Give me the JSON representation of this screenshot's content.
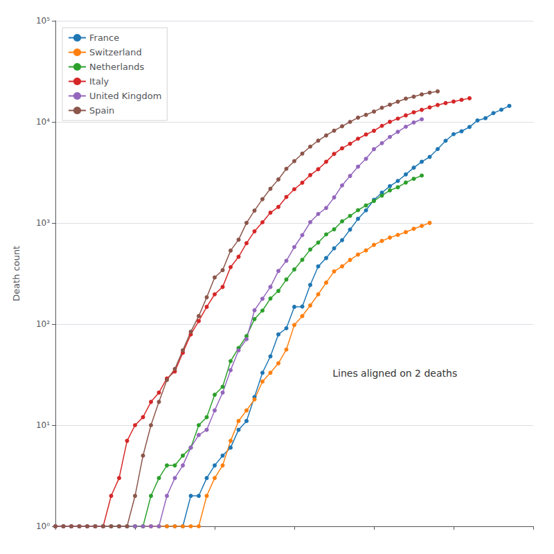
{
  "chart_data": {
    "type": "line",
    "ylabel": "Death count",
    "annotation": "Lines aligned on 2 deaths",
    "log": "y",
    "xlim": [
      0,
      60
    ],
    "ylim": [
      1,
      100000
    ],
    "yticks": [
      {
        "value": 1,
        "label": "10⁰"
      },
      {
        "value": 10,
        "label": "10¹"
      },
      {
        "value": 100,
        "label": "10²"
      },
      {
        "value": 1000,
        "label": "10³"
      },
      {
        "value": 10000,
        "label": "10⁴"
      },
      {
        "value": 100000,
        "label": "10⁵"
      }
    ],
    "grid": "y",
    "legend": "upper left",
    "tick_labels": "y",
    "marker": "circle",
    "series": [
      {
        "name": "France",
        "color": "#1f77b4",
        "x": [
          0,
          1,
          2,
          3,
          4,
          5,
          6,
          7,
          8,
          9,
          10,
          11,
          12,
          13,
          14,
          15,
          16,
          17,
          18,
          19,
          20,
          21,
          22,
          23,
          24,
          25,
          26,
          27,
          28,
          29,
          30,
          31,
          32,
          33,
          34,
          35,
          36,
          37,
          38,
          39,
          40,
          41,
          42,
          43,
          44,
          45,
          46,
          47,
          48,
          49,
          50,
          51,
          52,
          53,
          54,
          55,
          56,
          57
        ],
        "values": [
          1,
          1,
          1,
          1,
          1,
          1,
          1,
          1,
          1,
          1,
          1,
          1,
          1,
          1,
          1,
          1,
          1,
          2,
          2,
          3,
          4,
          5,
          6,
          9,
          11,
          19,
          33,
          48,
          79,
          91,
          148,
          149,
          244,
          372,
          450,
          562,
          676,
          860,
          1100,
          1333,
          1696,
          1995,
          2314,
          2606,
          3024,
          3523,
          4032,
          4503,
          5387,
          6507,
          7560,
          8078,
          8911,
          10328,
          10869,
          12210,
          13197,
          14393
        ]
      },
      {
        "name": "Switzerland",
        "color": "#ff7f0e",
        "x": [
          0,
          1,
          2,
          3,
          4,
          5,
          6,
          7,
          8,
          9,
          10,
          11,
          12,
          13,
          14,
          15,
          16,
          17,
          18,
          19,
          20,
          21,
          22,
          23,
          24,
          25,
          26,
          27,
          28,
          29,
          30,
          31,
          32,
          33,
          34,
          35,
          36,
          37,
          38,
          39,
          40,
          41,
          42,
          43,
          44,
          45,
          46,
          47
        ],
        "values": [
          1,
          1,
          1,
          1,
          1,
          1,
          1,
          1,
          1,
          1,
          1,
          1,
          1,
          1,
          1,
          1,
          1,
          1,
          1,
          2,
          3,
          4,
          7,
          11,
          14,
          18,
          27,
          33,
          41,
          56,
          98,
          120,
          153,
          197,
          257,
          332,
          373,
          431,
          487,
          536,
          607,
          665,
          717,
          762,
          812,
          876,
          936,
          1002
        ]
      },
      {
        "name": "Netherlands",
        "color": "#2ca02c",
        "x": [
          0,
          1,
          2,
          3,
          4,
          5,
          6,
          7,
          8,
          9,
          10,
          11,
          12,
          13,
          14,
          15,
          16,
          17,
          18,
          19,
          20,
          21,
          22,
          23,
          24,
          25,
          26,
          27,
          28,
          29,
          30,
          31,
          32,
          33,
          34,
          35,
          36,
          37,
          38,
          39,
          40,
          41,
          42,
          43,
          44,
          45,
          46
        ],
        "values": [
          1,
          1,
          1,
          1,
          1,
          1,
          1,
          1,
          1,
          1,
          1,
          1,
          2,
          3,
          4,
          4,
          5,
          6,
          10,
          12,
          20,
          24,
          43,
          58,
          76,
          112,
          136,
          179,
          213,
          276,
          347,
          432,
          546,
          640,
          771,
          865,
          1039,
          1175,
          1339,
          1490,
          1651,
          1867,
          2101,
          2255,
          2511,
          2737,
          2945
        ]
      },
      {
        "name": "Italy",
        "color": "#d62728",
        "x": [
          0,
          1,
          2,
          3,
          4,
          5,
          6,
          7,
          8,
          9,
          10,
          11,
          12,
          13,
          14,
          15,
          16,
          17,
          18,
          19,
          20,
          21,
          22,
          23,
          24,
          25,
          26,
          27,
          28,
          29,
          30,
          31,
          32,
          33,
          34,
          35,
          36,
          37,
          38,
          39,
          40,
          41,
          42,
          43,
          44,
          45,
          46,
          47,
          48,
          49,
          50,
          51,
          52
        ],
        "values": [
          1,
          1,
          1,
          1,
          1,
          1,
          1,
          2,
          3,
          7,
          10,
          12,
          17,
          21,
          29,
          34,
          52,
          79,
          107,
          148,
          197,
          233,
          366,
          463,
          631,
          827,
          1016,
          1266,
          1441,
          1809,
          2158,
          2503,
          2978,
          3405,
          4032,
          4825,
          5476,
          6077,
          6820,
          7503,
          8165,
          9134,
          10023,
          10779,
          11591,
          12428,
          13155,
          13915,
          14681,
          15362,
          15887,
          16523,
          17127
        ]
      },
      {
        "name": "United Kingdom",
        "color": "#9467bd",
        "x": [
          0,
          1,
          2,
          3,
          4,
          5,
          6,
          7,
          8,
          9,
          10,
          11,
          12,
          13,
          14,
          15,
          16,
          17,
          18,
          19,
          20,
          21,
          22,
          23,
          24,
          25,
          26,
          27,
          28,
          29,
          30,
          31,
          32,
          33,
          34,
          35,
          36,
          37,
          38,
          39,
          40,
          41,
          42,
          43,
          44,
          45,
          46
        ],
        "values": [
          1,
          1,
          1,
          1,
          1,
          1,
          1,
          1,
          1,
          1,
          1,
          1,
          1,
          1,
          2,
          3,
          4,
          6,
          8,
          9,
          14,
          21,
          35,
          55,
          71,
          137,
          178,
          233,
          335,
          423,
          578,
          759,
          1019,
          1228,
          1408,
          1789,
          2352,
          2921,
          3605,
          4313,
          5373,
          6159,
          7097,
          7978,
          8958,
          9875,
          10612
        ]
      },
      {
        "name": "Spain",
        "color": "#8c564b",
        "x": [
          0,
          1,
          2,
          3,
          4,
          5,
          6,
          7,
          8,
          9,
          10,
          11,
          12,
          13,
          14,
          15,
          16,
          17,
          18,
          19,
          20,
          21,
          22,
          23,
          24,
          25,
          26,
          27,
          28,
          29,
          30,
          31,
          32,
          33,
          34,
          35,
          36,
          37,
          38,
          39,
          40,
          41,
          42,
          43,
          44,
          45,
          46,
          47,
          48
        ],
        "values": [
          1,
          1,
          1,
          1,
          1,
          1,
          1,
          1,
          1,
          1,
          2,
          5,
          10,
          17,
          28,
          36,
          55,
          84,
          120,
          184,
          289,
          342,
          533,
          683,
          1002,
          1326,
          1720,
          2182,
          2696,
          3434,
          4089,
          4858,
          5690,
          6528,
          7340,
          8189,
          9053,
          10003,
          11019,
          11744,
          12641,
          13798,
          14792,
          15843,
          16972,
          17756,
          18708,
          19478,
          20043
        ]
      }
    ]
  }
}
